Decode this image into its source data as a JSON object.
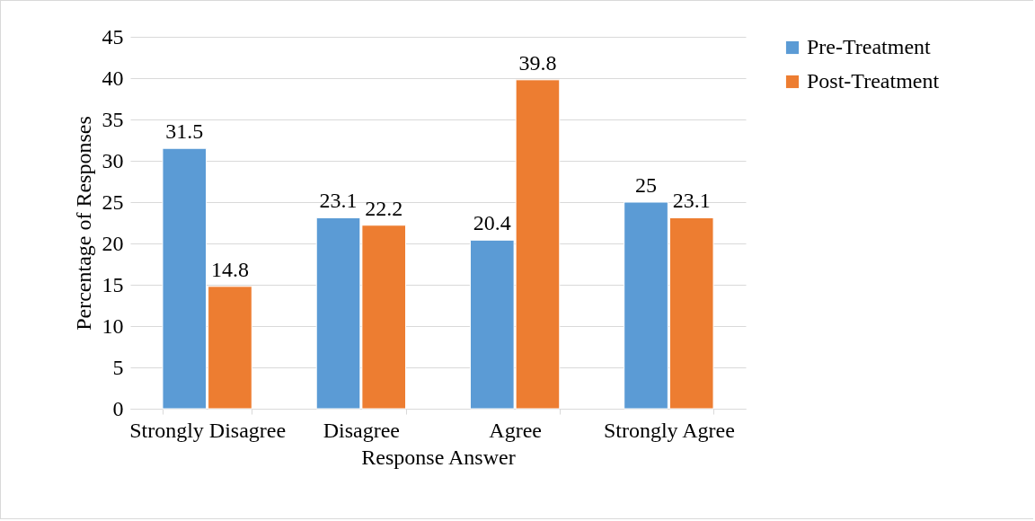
{
  "chart_data": {
    "type": "bar",
    "xlabel": "Response Answer",
    "ylabel": "Percentage of Responses",
    "categories": [
      "Strongly Disagree",
      "Disagree",
      "Agree",
      "Strongly Agree"
    ],
    "series": [
      {
        "name": "Pre-Treatment",
        "color": "#5b9bd5",
        "values": [
          31.5,
          23.1,
          20.4,
          25
        ]
      },
      {
        "name": "Post-Treatment",
        "color": "#ed7d31",
        "values": [
          14.8,
          22.2,
          39.8,
          23.1
        ]
      }
    ],
    "ylim": [
      0,
      45
    ],
    "yticks": [
      0,
      5,
      10,
      15,
      20,
      25,
      30,
      35,
      40,
      45
    ],
    "grid": "y",
    "legend": "right",
    "data_labels": true
  }
}
